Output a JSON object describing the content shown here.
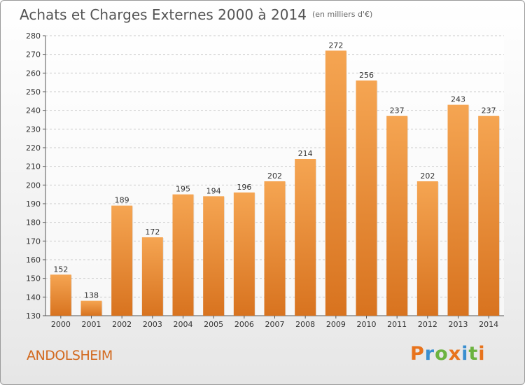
{
  "chart_data": {
    "type": "bar",
    "title": "Achats et Charges Externes 2000 à 2014",
    "subtitle": "(en milliers d'€)",
    "categories": [
      "2000",
      "2001",
      "2002",
      "2003",
      "2004",
      "2005",
      "2006",
      "2007",
      "2008",
      "2009",
      "2010",
      "2011",
      "2012",
      "2013",
      "2014"
    ],
    "values": [
      152,
      138,
      189,
      172,
      195,
      194,
      196,
      202,
      214,
      272,
      256,
      237,
      202,
      243,
      237
    ],
    "ylim": [
      130,
      280
    ],
    "yticks": [
      130,
      140,
      150,
      160,
      170,
      180,
      190,
      200,
      210,
      220,
      230,
      240,
      250,
      260,
      270,
      280
    ],
    "grid": true,
    "bar_color_top": "#f5a552",
    "bar_color_bottom": "#d8731f"
  },
  "footer": {
    "place": "ANDOLSHEIM",
    "logo": "Proxiti"
  },
  "colors": {
    "place": "#d2691e",
    "logo_letters": [
      "#e8731c",
      "#3a8fd0",
      "#6cb33f",
      "#e8731c",
      "#3a8fd0",
      "#6cb33f",
      "#e8731c"
    ]
  }
}
